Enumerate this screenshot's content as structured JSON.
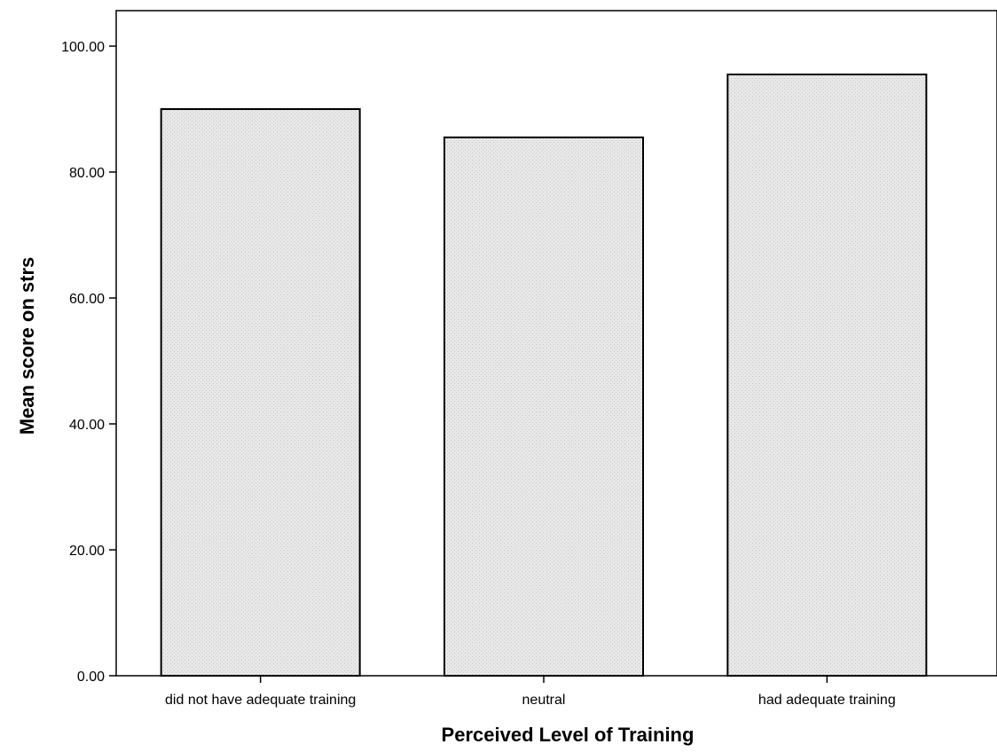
{
  "chart_data": {
    "type": "bar",
    "categories": [
      "did not have adequate training",
      "neutral",
      "had adequate training"
    ],
    "values": [
      90.0,
      85.5,
      95.5
    ],
    "xlabel": "Perceived Level of Training",
    "ylabel": "Mean score on strs",
    "ylim": [
      0,
      106.5
    ],
    "yticks": [
      "0.00",
      "20.00",
      "40.00",
      "60.00",
      "80.00",
      "100.00"
    ],
    "ytick_values": [
      0,
      20,
      40,
      60,
      80,
      100
    ],
    "grid": false,
    "bar_color": "#e6e6e6",
    "bar_edge_color": "#000000"
  }
}
